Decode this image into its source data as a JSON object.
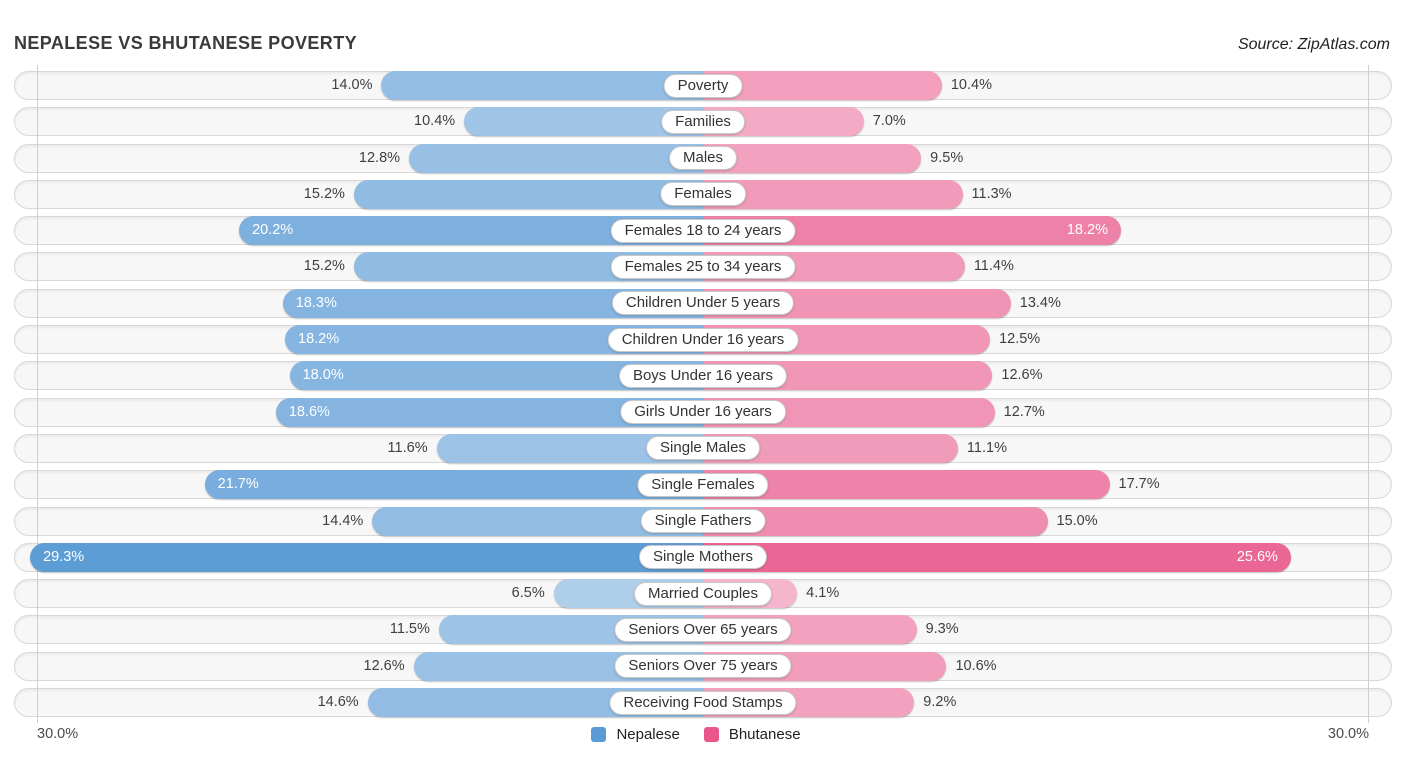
{
  "header": {
    "title": "NEPALESE VS BHUTANESE POVERTY",
    "source": "Source: ZipAtlas.com"
  },
  "chart_data": {
    "type": "bar",
    "variant": "diverging-horizontal",
    "title": "NEPALESE VS BHUTANESE POVERTY",
    "categories": [
      "Poverty",
      "Families",
      "Males",
      "Females",
      "Females 18 to 24 years",
      "Females 25 to 34 years",
      "Children Under 5 years",
      "Children Under 16 years",
      "Boys Under 16 years",
      "Girls Under 16 years",
      "Single Males",
      "Single Females",
      "Single Fathers",
      "Single Mothers",
      "Married Couples",
      "Seniors Over 65 years",
      "Seniors Over 75 years",
      "Receiving Food Stamps"
    ],
    "series": [
      {
        "name": "Nepalese",
        "color": "#5b9bd5",
        "values": [
          14.0,
          10.4,
          12.8,
          15.2,
          20.2,
          15.2,
          18.3,
          18.2,
          18.0,
          18.6,
          11.6,
          21.7,
          14.4,
          29.3,
          6.5,
          11.5,
          12.6,
          14.6
        ]
      },
      {
        "name": "Bhutanese",
        "color": "#e8568a",
        "values": [
          10.4,
          7.0,
          9.5,
          11.3,
          18.2,
          11.4,
          13.4,
          12.5,
          12.6,
          12.7,
          11.1,
          17.7,
          15.0,
          25.6,
          4.1,
          9.3,
          10.6,
          9.2
        ]
      }
    ],
    "value_suffix": "%",
    "inside_label_threshold": 18.0,
    "axis": {
      "max_percent": 30.0,
      "left_axis_label": "30.0%",
      "right_axis_label": "30.0%"
    },
    "legend": [
      {
        "label": "Nepalese",
        "color": "#5b9bd5"
      },
      {
        "label": "Bhutanese",
        "color": "#e8568a"
      }
    ]
  }
}
